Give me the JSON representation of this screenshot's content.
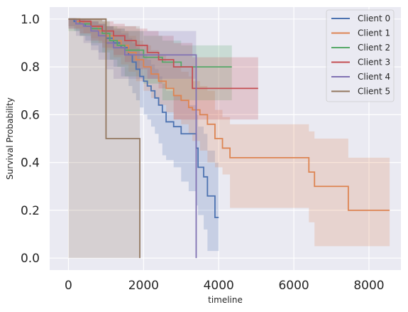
{
  "chart_data": {
    "type": "line",
    "step": true,
    "title": "",
    "xlabel": "timeline",
    "ylabel": "Survival Probability",
    "xlim": [
      -500,
      8850
    ],
    "ylim": [
      -0.05,
      1.05
    ],
    "xticks": [
      0,
      2000,
      4000,
      6000,
      8000
    ],
    "yticks": [
      0.0,
      0.2,
      0.4,
      0.6,
      0.8,
      1.0
    ],
    "xtick_labels": [
      "0",
      "2000",
      "4000",
      "6000",
      "8000"
    ],
    "ytick_labels": [
      "0.0",
      "0.2",
      "0.4",
      "0.6",
      "0.8",
      "1.0"
    ],
    "grid": true,
    "legend_position": "top-right",
    "series": [
      {
        "name": "Client 0",
        "color": "#4c72b0",
        "x": [
          0,
          150,
          300,
          450,
          600,
          800,
          1000,
          1200,
          1400,
          1600,
          1700,
          1800,
          1900,
          2000,
          2100,
          2200,
          2300,
          2400,
          2500,
          2600,
          2800,
          3000,
          3200,
          3400,
          3450,
          3600,
          3700,
          3900,
          4000
        ],
        "y": [
          1.0,
          0.99,
          0.98,
          0.97,
          0.96,
          0.95,
          0.92,
          0.9,
          0.88,
          0.85,
          0.82,
          0.79,
          0.76,
          0.74,
          0.72,
          0.7,
          0.67,
          0.64,
          0.61,
          0.57,
          0.55,
          0.52,
          0.52,
          0.46,
          0.38,
          0.34,
          0.26,
          0.17,
          0.17
        ],
        "lower": [
          1.0,
          0.97,
          0.95,
          0.93,
          0.91,
          0.89,
          0.86,
          0.83,
          0.8,
          0.76,
          0.72,
          0.69,
          0.66,
          0.63,
          0.6,
          0.58,
          0.55,
          0.52,
          0.48,
          0.43,
          0.41,
          0.38,
          0.32,
          0.28,
          0.22,
          0.18,
          0.12,
          0.03,
          0.03
        ],
        "upper": [
          1.0,
          1.0,
          1.0,
          0.99,
          0.99,
          0.98,
          0.97,
          0.95,
          0.94,
          0.92,
          0.9,
          0.88,
          0.86,
          0.85,
          0.83,
          0.81,
          0.79,
          0.76,
          0.73,
          0.7,
          0.68,
          0.66,
          0.64,
          0.6,
          0.55,
          0.52,
          0.45,
          0.4,
          0.4
        ]
      },
      {
        "name": "Client 1",
        "color": "#dd8452",
        "x": [
          0,
          200,
          400,
          600,
          800,
          1000,
          1200,
          1400,
          1600,
          1800,
          2000,
          2200,
          2400,
          2600,
          2800,
          3000,
          3200,
          3300,
          3500,
          3700,
          3900,
          4100,
          4300,
          6400,
          6550,
          7450,
          8550
        ],
        "y": [
          1.0,
          0.99,
          0.98,
          0.97,
          0.95,
          0.93,
          0.91,
          0.89,
          0.86,
          0.83,
          0.8,
          0.77,
          0.74,
          0.71,
          0.68,
          0.66,
          0.63,
          0.62,
          0.6,
          0.56,
          0.5,
          0.46,
          0.42,
          0.36,
          0.3,
          0.2,
          0.2
        ],
        "lower": [
          1.0,
          0.97,
          0.96,
          0.94,
          0.92,
          0.9,
          0.87,
          0.84,
          0.81,
          0.78,
          0.74,
          0.7,
          0.67,
          0.64,
          0.61,
          0.58,
          0.56,
          0.52,
          0.49,
          0.45,
          0.4,
          0.38,
          0.35,
          0.21,
          0.15,
          0.05,
          0.05
        ],
        "upper": [
          1.0,
          1.0,
          1.0,
          0.99,
          0.98,
          0.97,
          0.96,
          0.95,
          0.93,
          0.91,
          0.89,
          0.87,
          0.85,
          0.82,
          0.8,
          0.78,
          0.76,
          0.74,
          0.72,
          0.7,
          0.62,
          0.59,
          0.56,
          0.53,
          0.5,
          0.42,
          0.42
        ]
      },
      {
        "name": "Client 2",
        "color": "#55a868",
        "x": [
          0,
          300,
          600,
          900,
          1100,
          1300,
          1500,
          2000,
          2500,
          3000,
          4350
        ],
        "y": [
          1.0,
          0.98,
          0.96,
          0.94,
          0.91,
          0.89,
          0.87,
          0.84,
          0.82,
          0.8,
          0.8
        ],
        "lower": [
          1.0,
          0.95,
          0.93,
          0.9,
          0.86,
          0.83,
          0.8,
          0.76,
          0.73,
          0.66,
          0.66
        ],
        "upper": [
          1.0,
          1.0,
          1.0,
          0.99,
          0.97,
          0.96,
          0.95,
          0.93,
          0.91,
          0.89,
          0.89
        ]
      },
      {
        "name": "Client 3",
        "color": "#c44e52",
        "x": [
          0,
          300,
          600,
          900,
          1200,
          1500,
          1800,
          2100,
          2400,
          2800,
          3300,
          5050
        ],
        "y": [
          1.0,
          0.99,
          0.97,
          0.95,
          0.93,
          0.91,
          0.89,
          0.86,
          0.83,
          0.8,
          0.71,
          0.71
        ],
        "lower": [
          1.0,
          0.96,
          0.94,
          0.91,
          0.88,
          0.85,
          0.82,
          0.79,
          0.75,
          0.71,
          0.58,
          0.58
        ],
        "upper": [
          1.0,
          1.0,
          1.0,
          0.99,
          0.98,
          0.97,
          0.96,
          0.95,
          0.93,
          0.9,
          0.84,
          0.84
        ]
      },
      {
        "name": "Client 4",
        "color": "#8172b3",
        "x": [
          0,
          200,
          400,
          600,
          800,
          1000,
          1200,
          1500,
          3400,
          3400
        ],
        "y": [
          1.0,
          0.98,
          0.97,
          0.95,
          0.93,
          0.9,
          0.88,
          0.85,
          0.85,
          0.0
        ],
        "lower": [
          1.0,
          0.96,
          0.93,
          0.9,
          0.87,
          0.83,
          0.79,
          0.75,
          0.75,
          0.0
        ],
        "upper": [
          1.0,
          1.0,
          1.0,
          0.99,
          0.98,
          0.97,
          0.96,
          0.95,
          0.95,
          0.0
        ]
      },
      {
        "name": "Client 5",
        "color": "#937860",
        "x": [
          0,
          1000,
          1900,
          1900
        ],
        "y": [
          1.0,
          0.5,
          0.5,
          0.0
        ],
        "lower": [
          1.0,
          0.0,
          0.0,
          0.0
        ],
        "upper": [
          1.0,
          0.97,
          0.97,
          0.0
        ]
      }
    ]
  }
}
